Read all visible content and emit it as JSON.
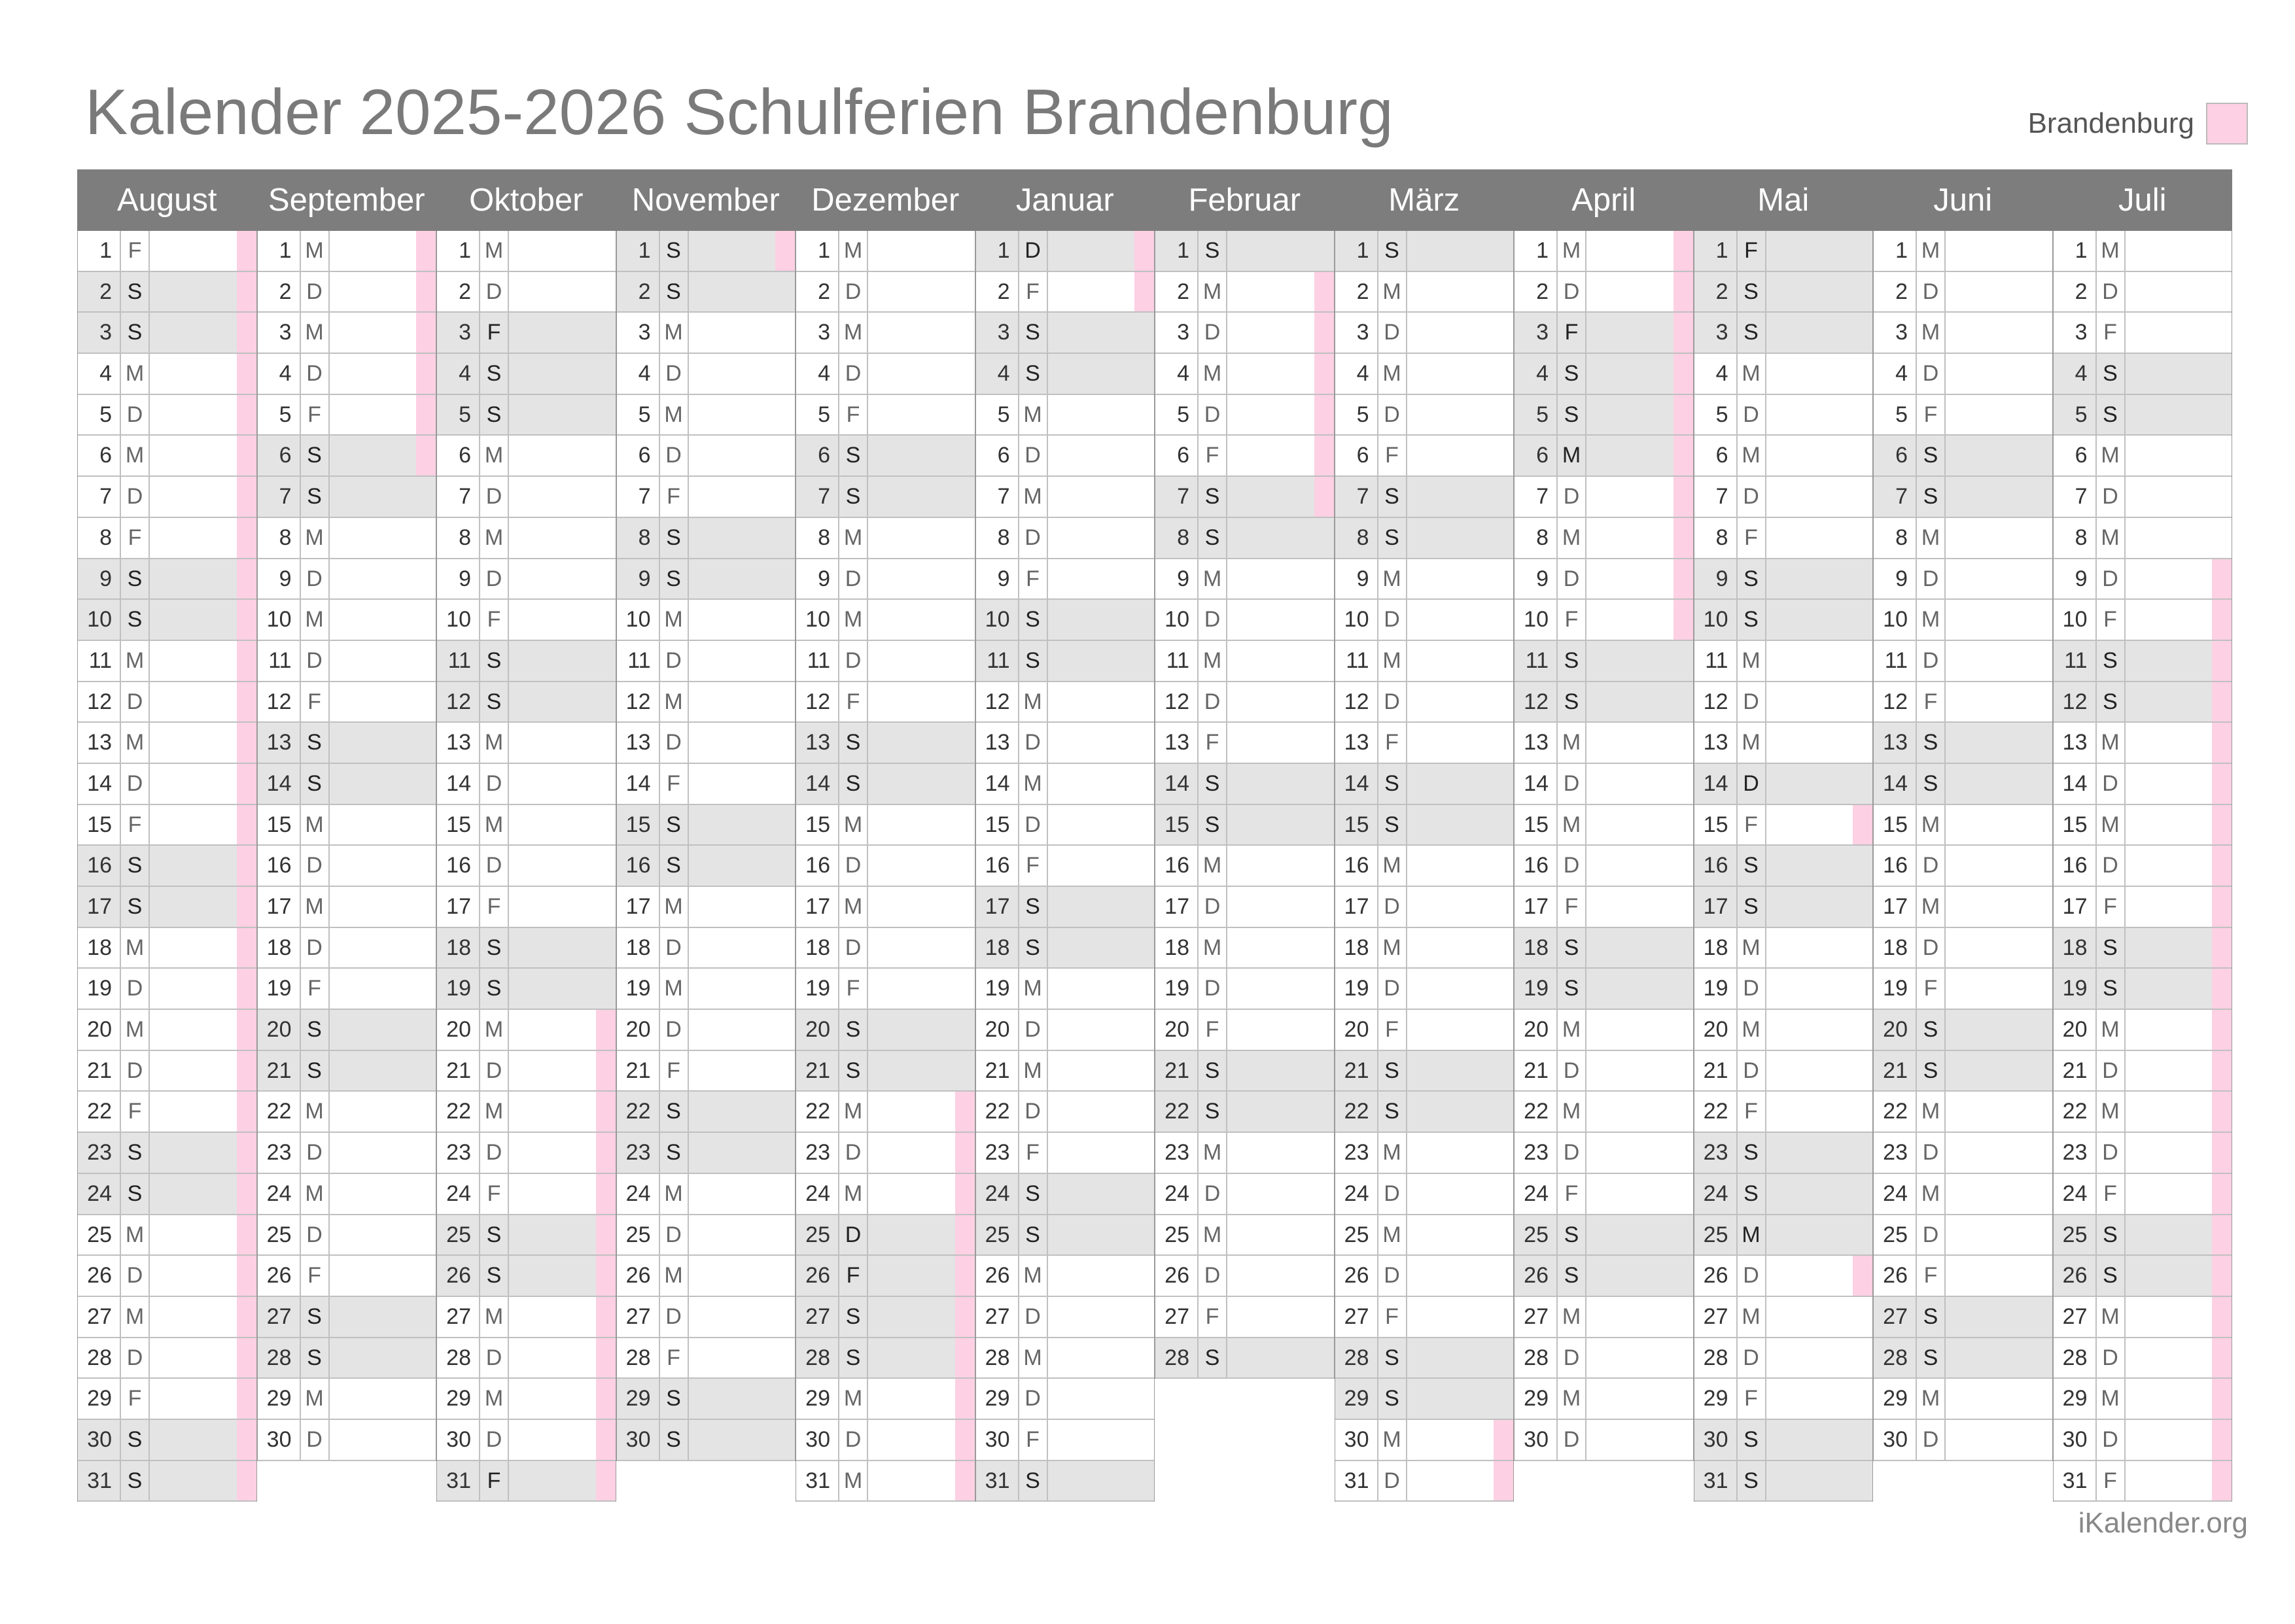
{
  "title": "Kalender 2025-2026 Schulferien Brandenburg",
  "legend": {
    "label": "Brandenburg",
    "color": "#fdd0e3"
  },
  "footer": "iKalender.org",
  "colors": {
    "header_bg": "#7d7d7d",
    "weekend_bg": "#e4e4e4",
    "ferien": "#fdd0e3"
  },
  "months": [
    {
      "name": "August",
      "year": 2025,
      "month": 8,
      "ferien": [
        [
          1,
          31
        ]
      ]
    },
    {
      "name": "September",
      "year": 2025,
      "month": 9,
      "ferien": [
        [
          1,
          6
        ]
      ]
    },
    {
      "name": "Oktober",
      "year": 2025,
      "month": 10,
      "ferien": [
        [
          20,
          31
        ]
      ]
    },
    {
      "name": "November",
      "year": 2025,
      "month": 11,
      "ferien": [
        [
          1,
          1
        ]
      ]
    },
    {
      "name": "Dezember",
      "year": 2025,
      "month": 12,
      "ferien": [
        [
          22,
          31
        ]
      ]
    },
    {
      "name": "Januar",
      "year": 2026,
      "month": 1,
      "ferien": [
        [
          1,
          2
        ]
      ]
    },
    {
      "name": "Februar",
      "year": 2026,
      "month": 2,
      "ferien": [
        [
          2,
          7
        ]
      ]
    },
    {
      "name": "März",
      "year": 2026,
      "month": 3,
      "ferien": [
        [
          30,
          31
        ]
      ]
    },
    {
      "name": "April",
      "year": 2026,
      "month": 4,
      "ferien": [
        [
          1,
          10
        ]
      ]
    },
    {
      "name": "Mai",
      "year": 2026,
      "month": 5,
      "ferien": [
        [
          15,
          15
        ],
        [
          26,
          26
        ]
      ]
    },
    {
      "name": "Juni",
      "year": 2026,
      "month": 6,
      "ferien": []
    },
    {
      "name": "Juli",
      "year": 2026,
      "month": 7,
      "ferien": [
        [
          9,
          31
        ]
      ]
    }
  ],
  "holidays": [
    "2025-10-03",
    "2025-10-31",
    "2025-12-25",
    "2025-12-26",
    "2026-01-01",
    "2026-04-03",
    "2026-04-06",
    "2026-05-01",
    "2026-05-14",
    "2026-05-25"
  ],
  "weekday_letters": [
    "S",
    "M",
    "D",
    "M",
    "D",
    "F",
    "S"
  ]
}
